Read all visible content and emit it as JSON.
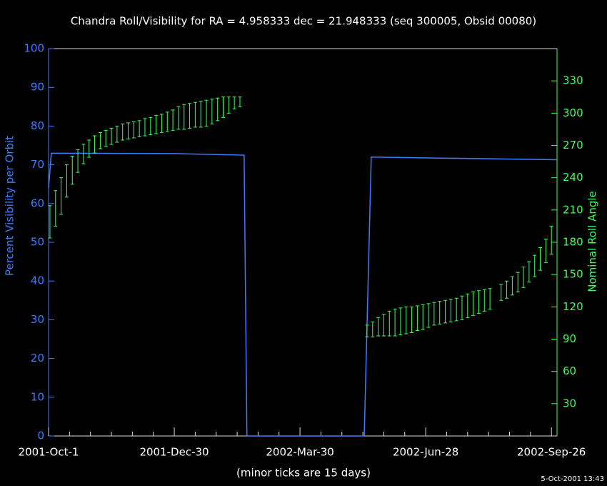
{
  "chart_data": {
    "type": "line",
    "title": "Chandra Roll/Visibility for RA = 4.958333 dec = 21.948333 (seq 300005, Obsid 00080)",
    "ylabel": "Percent Visibility per Orbit",
    "y2label": "Nominal Roll Angle",
    "xlabel": "(minor ticks are 15 days)",
    "timestamp": "5-Oct-2001 13:43",
    "xlim": [
      "2001-10-01",
      "2002-09-30"
    ],
    "xticks": [
      {
        "value": "2001-10-01",
        "label": "2001-Oct-1"
      },
      {
        "value": "2001-12-30",
        "label": "2001-Dec-30"
      },
      {
        "value": "2002-03-30",
        "label": "2002-Mar-30"
      },
      {
        "value": "2002-06-28",
        "label": "2002-Jun-28"
      },
      {
        "value": "2002-09-26",
        "label": "2002-Sep-26"
      }
    ],
    "xminorticks": [
      "2001-10-16",
      "2001-10-31",
      "2001-11-15",
      "2001-11-30",
      "2001-12-15",
      "2002-01-14",
      "2002-01-29",
      "2002-02-13",
      "2002-02-28",
      "2002-03-15",
      "2002-04-14",
      "2002-04-29",
      "2002-05-14",
      "2002-05-29",
      "2002-06-13",
      "2002-07-13",
      "2002-07-28",
      "2002-08-12",
      "2002-08-27",
      "2002-09-11"
    ],
    "ylim": [
      0,
      100
    ],
    "yticks": [
      0,
      10,
      20,
      30,
      40,
      50,
      60,
      70,
      80,
      90,
      100
    ],
    "y2lim": [
      0,
      360
    ],
    "y2ticks": [
      30,
      60,
      90,
      120,
      150,
      180,
      210,
      240,
      270,
      300,
      330
    ],
    "ycolor": "#3d7dff",
    "y2color": "#3cff5a",
    "series": [
      {
        "color": "#3d7dff",
        "axis": "y",
        "x": [
          "2001-10-01",
          "2001-10-03",
          "2001-12-30",
          "2002-02-18",
          "2002-02-20",
          "2002-05-15",
          "2002-05-20",
          "2002-09-30"
        ],
        "values": [
          64,
          73,
          72.9,
          72.5,
          0,
          0,
          72,
          71.3
        ]
      },
      {
        "color": "#3cff5a",
        "axis": "y2",
        "type": "errorbar",
        "x": [
          "2001-10-02",
          "2001-10-06",
          "2001-10-10",
          "2001-10-14",
          "2001-10-18",
          "2001-10-22",
          "2001-10-26",
          "2001-10-30",
          "2001-11-03",
          "2001-11-07",
          "2001-11-11",
          "2001-11-15",
          "2001-11-19",
          "2001-11-23",
          "2001-11-27",
          "2001-12-01",
          "2001-12-05",
          "2001-12-09",
          "2001-12-13",
          "2001-12-17",
          "2001-12-21",
          "2001-12-25",
          "2001-12-29",
          "2002-01-02",
          "2002-01-06",
          "2002-01-10",
          "2002-01-14",
          "2002-01-18",
          "2002-01-22",
          "2002-01-26",
          "2002-01-30",
          "2002-02-03",
          "2002-02-07",
          "2002-02-11",
          "2002-02-15",
          "2002-05-17",
          "2002-05-21",
          "2002-05-25",
          "2002-05-29",
          "2002-06-02",
          "2002-06-06",
          "2002-06-10",
          "2002-06-14",
          "2002-06-18",
          "2002-06-22",
          "2002-06-26",
          "2002-06-30",
          "2002-07-04",
          "2002-07-08",
          "2002-07-12",
          "2002-07-16",
          "2002-07-20",
          "2002-07-24",
          "2002-07-28",
          "2002-08-01",
          "2002-08-05",
          "2002-08-09",
          "2002-08-13",
          "2002-08-21",
          "2002-08-25",
          "2002-08-29",
          "2002-09-02",
          "2002-09-06",
          "2002-09-10",
          "2002-09-14",
          "2002-09-18",
          "2002-09-22",
          "2002-09-26"
        ],
        "low": [
          184,
          195,
          206,
          222,
          234,
          245,
          253,
          259,
          263,
          267,
          269,
          271,
          273,
          275,
          276,
          277,
          278,
          279,
          280,
          281,
          282,
          283,
          284,
          285,
          285,
          286,
          287,
          287,
          288,
          290,
          293,
          296,
          300,
          304,
          306,
          92,
          92,
          93,
          93,
          93,
          93,
          94,
          95,
          96,
          98,
          99,
          101,
          103,
          104,
          105,
          106,
          107,
          108,
          110,
          112,
          114,
          116,
          118,
          126,
          128,
          131,
          134,
          138,
          143,
          148,
          154,
          161,
          169
        ],
        "high": [
          214,
          228,
          240,
          252,
          260,
          266,
          271,
          275,
          279,
          282,
          284,
          286,
          288,
          290,
          291,
          292,
          293,
          295,
          296,
          298,
          299,
          301,
          303,
          306,
          308,
          309,
          310,
          311,
          312,
          313,
          314,
          315,
          315,
          315,
          315,
          103,
          106,
          110,
          113,
          116,
          118,
          119,
          120,
          120,
          121,
          122,
          123,
          124,
          125,
          126,
          127,
          128,
          130,
          132,
          134,
          135,
          136,
          137,
          141,
          144,
          148,
          152,
          157,
          162,
          168,
          175,
          183,
          195
        ]
      }
    ]
  }
}
